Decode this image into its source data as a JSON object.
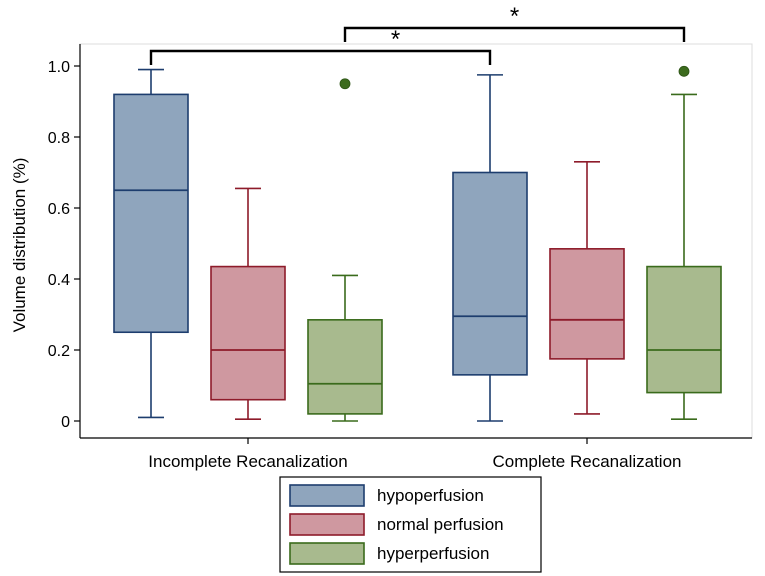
{
  "chart_data": {
    "type": "boxplot",
    "title": "",
    "xlabel": "",
    "ylabel": "Volume distribution (%)",
    "ylim": [
      0,
      1.0
    ],
    "yticks": [
      0,
      0.2,
      0.4,
      0.6,
      0.8,
      1.0
    ],
    "ytick_labels": [
      "0",
      "0.2",
      "0.4",
      "0.6",
      "0.8",
      "1.0"
    ],
    "groups": [
      "Incomplete Recanalization",
      "Complete Recanalization"
    ],
    "series": [
      {
        "name": "hypoperfusion",
        "fill": "#8fa5bd",
        "stroke": "#1d3d6e",
        "boxes": [
          {
            "whisker_low": 0.01,
            "q1": 0.25,
            "median": 0.65,
            "q3": 0.92,
            "whisker_high": 0.99,
            "outliers": []
          },
          {
            "whisker_low": 0.0,
            "q1": 0.13,
            "median": 0.295,
            "q3": 0.7,
            "whisker_high": 0.975,
            "outliers": []
          }
        ]
      },
      {
        "name": "normal perfusion",
        "fill": "#cf98a0",
        "stroke": "#8e1b2a",
        "boxes": [
          {
            "whisker_low": 0.005,
            "q1": 0.06,
            "median": 0.2,
            "q3": 0.435,
            "whisker_high": 0.655,
            "outliers": []
          },
          {
            "whisker_low": 0.02,
            "q1": 0.175,
            "median": 0.285,
            "q3": 0.485,
            "whisker_high": 0.73,
            "outliers": []
          }
        ]
      },
      {
        "name": "hyperperfusion",
        "fill": "#a8ba8e",
        "stroke": "#3a6b1c",
        "boxes": [
          {
            "whisker_low": 0.0,
            "q1": 0.02,
            "median": 0.105,
            "q3": 0.285,
            "whisker_high": 0.41,
            "outliers": [
              0.95
            ]
          },
          {
            "whisker_low": 0.005,
            "q1": 0.08,
            "median": 0.2,
            "q3": 0.435,
            "whisker_high": 0.92,
            "outliers": [
              0.985
            ]
          }
        ]
      }
    ],
    "significance": [
      {
        "from": "Incomplete Recanalization / hypoperfusion",
        "to": "Complete Recanalization / hypoperfusion",
        "label": "*"
      },
      {
        "from": "Incomplete Recanalization / hyperperfusion",
        "to": "Complete Recanalization / hyperperfusion",
        "label": "*"
      }
    ],
    "legend": [
      "hypoperfusion",
      "normal perfusion",
      "hyperperfusion"
    ],
    "legend_position": "bottom-center"
  }
}
